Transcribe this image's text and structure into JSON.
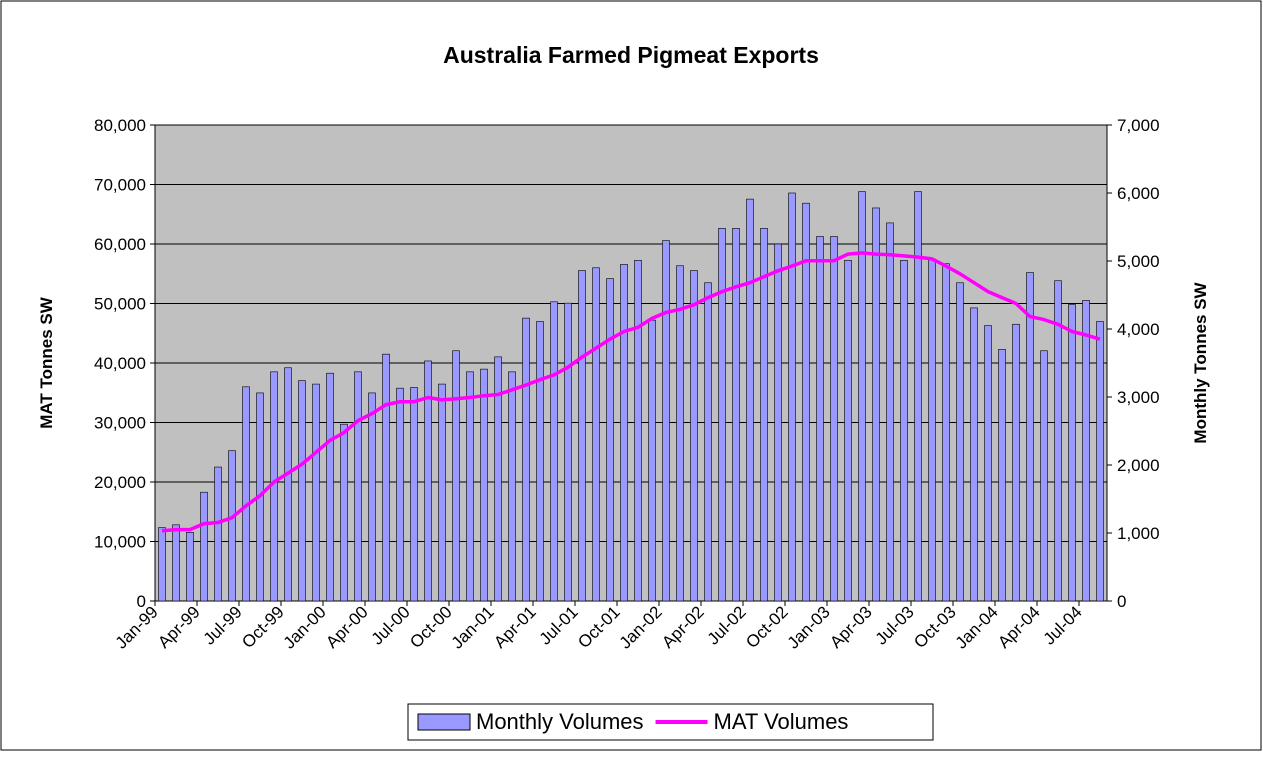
{
  "chart_data": {
    "type": "bar-line",
    "title": "Australia Farmed Pigmeat Exports",
    "y_label": "MAT Tonnes SW",
    "y2_label": "Monthly Tonnes SW",
    "categories": [
      "Jan-99",
      null,
      null,
      "Apr-99",
      null,
      null,
      "Jul-99",
      null,
      null,
      "Oct-99",
      null,
      null,
      "Jan-00",
      null,
      null,
      "Apr-00",
      null,
      null,
      "Jul-00",
      null,
      null,
      "Oct-00",
      null,
      null,
      "Jan-01",
      null,
      null,
      "Apr-01",
      null,
      null,
      "Jul-01",
      null,
      null,
      "Oct-01",
      null,
      null,
      "Jan-02",
      null,
      null,
      "Apr-02",
      null,
      null,
      "Jul-02",
      null,
      null,
      "Oct-02",
      null,
      null,
      "Jan-03",
      null,
      null,
      "Apr-03",
      null,
      null,
      "Jul-03",
      null,
      null,
      "Oct-03",
      null,
      null,
      "Jan-04",
      null,
      null,
      "Apr-04",
      null,
      null,
      "Jul-04",
      null
    ],
    "series": [
      {
        "name": "Monthly Volumes",
        "type": "bar",
        "axis": "y2",
        "color": "#9999ff",
        "values": [
          1080,
          1120,
          1010,
          1600,
          1970,
          2210,
          3150,
          3060,
          3370,
          3430,
          3240,
          3190,
          3350,
          2600,
          3370,
          3060,
          3630,
          3130,
          3140,
          3530,
          3190,
          3680,
          3370,
          3410,
          3590,
          3370,
          4160,
          4110,
          4400,
          4380,
          4860,
          4900,
          4740,
          4950,
          5010,
          4130,
          5300,
          4930,
          4860,
          4680,
          5480,
          5480,
          5910,
          5480,
          5250,
          6000,
          5850,
          5360,
          5360,
          5010,
          6020,
          5780,
          5560,
          5010,
          6020,
          5030,
          4960,
          4680,
          4310,
          4050,
          3700,
          4070,
          4830,
          3680,
          4710,
          4360,
          4420,
          4110
        ]
      },
      {
        "name": "MAT Volumes",
        "type": "line",
        "axis": "y",
        "color": "#ff00ff",
        "values": [
          11800,
          12000,
          12000,
          13000,
          13200,
          14000,
          16000,
          17700,
          20000,
          21500,
          23000,
          25000,
          27000,
          28300,
          30300,
          31500,
          33000,
          33500,
          33500,
          34200,
          33800,
          34000,
          34200,
          34500,
          34700,
          35500,
          36300,
          37200,
          38000,
          39300,
          41000,
          42500,
          44000,
          45300,
          46000,
          47500,
          48500,
          49000,
          49800,
          51000,
          52000,
          52800,
          53500,
          54500,
          55500,
          56300,
          57200,
          57200,
          57200,
          58300,
          58500,
          58300,
          58200,
          58000,
          57800,
          57500,
          56300,
          55000,
          53500,
          52000,
          51000,
          50000,
          47800,
          47300,
          46500,
          45300,
          44700,
          44000
        ]
      }
    ],
    "ylim": [
      0,
      80000
    ],
    "yticks": [
      0,
      {
        "value": 10000,
        "label": "10,000"
      },
      {
        "value": 20000,
        "label": "20,000"
      },
      {
        "value": 30000,
        "label": "30,000"
      },
      {
        "value": 40000,
        "label": "40,000"
      },
      {
        "value": 50000,
        "label": "50,000"
      },
      {
        "value": 60000,
        "label": "60,000"
      },
      {
        "value": 70000,
        "label": "70,000"
      },
      {
        "value": 80000,
        "label": "80,000"
      }
    ],
    "y2lim": [
      0,
      7000
    ],
    "y2ticks": [
      0,
      {
        "value": 1000,
        "label": "1,000"
      },
      {
        "value": 2000,
        "label": "2,000"
      },
      {
        "value": 3000,
        "label": "3,000"
      },
      {
        "value": 4000,
        "label": "4,000"
      },
      {
        "value": 5000,
        "label": "5,000"
      },
      {
        "value": 6000,
        "label": "6,000"
      },
      {
        "value": 7000,
        "label": "7,000"
      }
    ],
    "grid": true
  }
}
